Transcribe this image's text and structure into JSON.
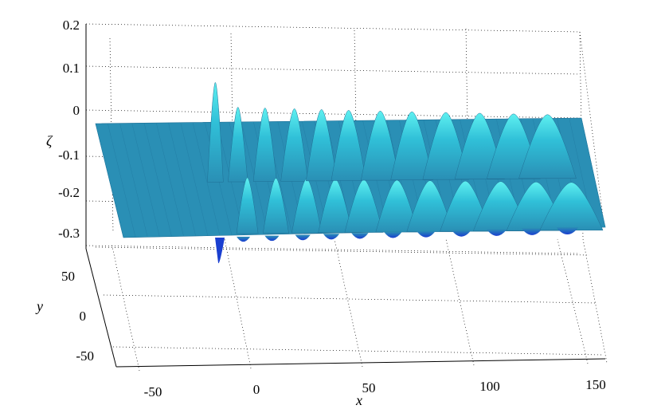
{
  "chart_data": {
    "type": "surface",
    "title": "",
    "xlabel": "x",
    "ylabel": "y",
    "zlabel": "ζ",
    "xlim": [
      -60,
      155
    ],
    "ylim": [
      -70,
      75
    ],
    "zlim": [
      -0.3,
      0.2
    ],
    "x_ticks": [
      "-50",
      "0",
      "50",
      "100",
      "150"
    ],
    "y_ticks": [
      "50",
      "0",
      "-50"
    ],
    "z_ticks": [
      "0.2",
      "0.1",
      "0",
      "-0.1",
      "-0.2",
      "-0.3"
    ],
    "grid": true,
    "colormap": "cyan-blue",
    "colors": {
      "surface": "#2a8fb5",
      "crest": "#40e0e8",
      "trough": "#1a3fd0"
    },
    "wave_crests_x": [
      -7,
      3,
      15,
      28,
      40,
      52,
      66,
      80,
      95,
      110,
      125,
      140
    ]
  }
}
